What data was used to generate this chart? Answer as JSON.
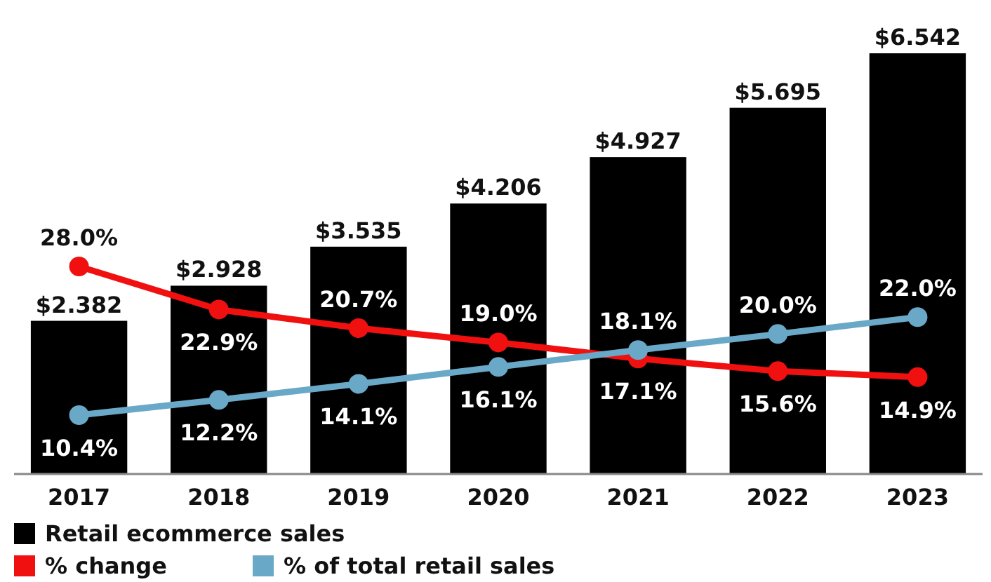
{
  "chart_data": {
    "type": "bar",
    "categories": [
      "2017",
      "2018",
      "2019",
      "2020",
      "2021",
      "2022",
      "2023"
    ],
    "tick_labels": "x",
    "legend": "bottom",
    "marker": "circle",
    "line_style": "solid",
    "series": [
      {
        "name": "Retail ecommerce sales",
        "color": "#000000",
        "values": [
          2.382,
          2.928,
          3.535,
          4.206,
          4.927,
          5.695,
          6.542
        ],
        "value_labels": [
          "$2.382",
          "$2.928",
          "$3.535",
          "$4.206",
          "$4.927",
          "$5.695",
          "$6.542"
        ]
      },
      {
        "name": "% change",
        "type": "line",
        "axis": "y2",
        "color": "#f01010",
        "values": [
          28.0,
          22.9,
          20.7,
          19.0,
          17.1,
          15.6,
          14.9
        ],
        "value_labels": [
          "28.0%",
          "22.9%",
          "20.7%",
          "19.0%",
          "17.1%",
          "15.6%",
          "14.9%"
        ]
      },
      {
        "name": "% of total retail sales",
        "type": "line",
        "axis": "y2",
        "color": "#6aa8c8",
        "values": [
          10.4,
          12.2,
          14.1,
          16.1,
          18.1,
          20.0,
          22.0
        ],
        "value_labels": [
          "10.4%",
          "12.2%",
          "14.1%",
          "16.1%",
          "18.1%",
          "20.0%",
          "22.0%"
        ]
      }
    ]
  }
}
